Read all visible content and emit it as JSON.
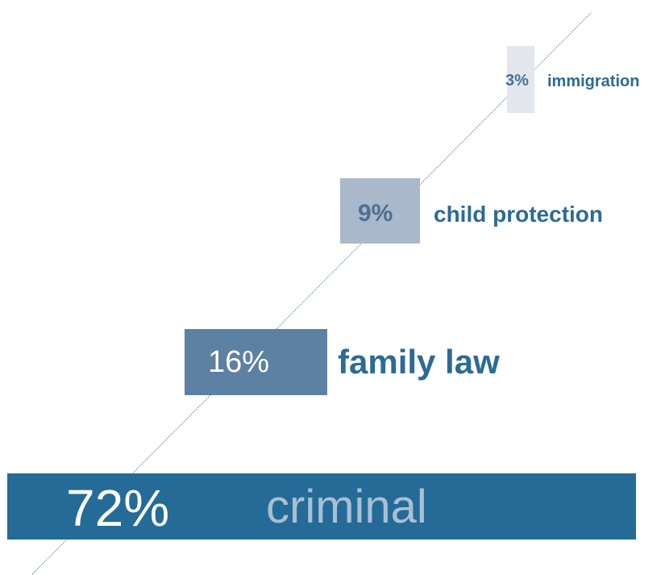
{
  "chart_data": {
    "type": "bar",
    "title": "",
    "xlabel": "",
    "ylabel": "",
    "categories": [
      "immigration",
      "child protection",
      "family law",
      "criminal"
    ],
    "values": [
      3,
      9,
      16,
      72
    ],
    "labels": [
      "3%",
      "9%",
      "16%",
      "72%"
    ],
    "units": "%",
    "grid": false,
    "legend": "none"
  },
  "colors": {
    "immigration": "#e3e6ec",
    "child protection": "#a9b8ca",
    "family law": "#5d81a3",
    "criminal": "#246b98",
    "category_text": "#2b6b96",
    "criminal_text": "#a9bfd3",
    "pct_light": "#ffffff",
    "pct_dark": "#4d6f93",
    "guide_line": "#3a6f98"
  }
}
